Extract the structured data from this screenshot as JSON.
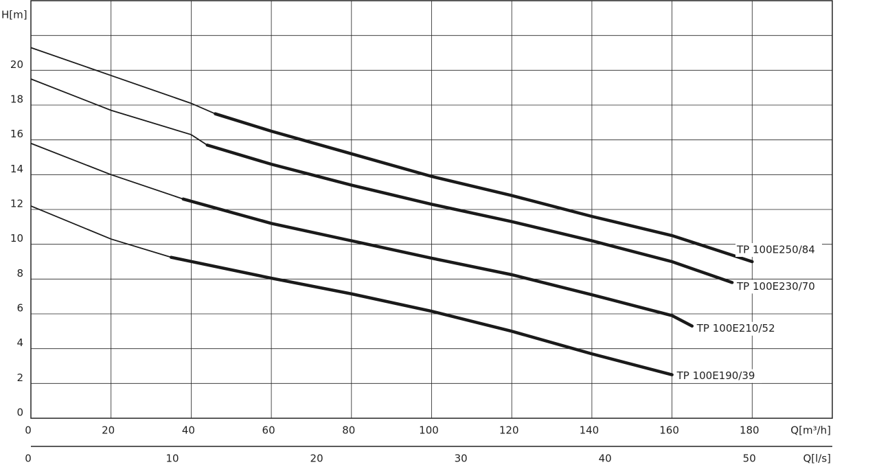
{
  "chart_data": {
    "type": "line",
    "ylabel": "H[m]",
    "xlabel": "Q[m³/h]",
    "x2label": "Q[l/s]",
    "xlim": [
      0,
      200
    ],
    "xticks": [
      0,
      20,
      40,
      60,
      80,
      100,
      120,
      140,
      160,
      180
    ],
    "xgrid": [
      0,
      20,
      40,
      60,
      80,
      100,
      120,
      140,
      160,
      180,
      200
    ],
    "x2lim": [
      0,
      55.56
    ],
    "x2ticks": [
      0,
      10,
      20,
      30,
      40,
      50
    ],
    "ylim": [
      0,
      24
    ],
    "yticks": [
      0,
      2,
      4,
      6,
      8,
      10,
      12,
      14,
      16,
      18,
      20
    ],
    "ygrid": [
      0,
      2,
      4,
      6,
      8,
      10,
      12,
      14,
      16,
      18,
      20,
      22
    ],
    "grid": true,
    "color": "#1a1a1a",
    "series": [
      {
        "name": "TP 100E250/84",
        "duty_start": 46,
        "x": [
          0,
          20,
          40,
          46,
          60,
          80,
          100,
          120,
          140,
          160,
          180
        ],
        "values": [
          21.3,
          19.7,
          18.1,
          17.5,
          16.5,
          15.2,
          13.9,
          12.8,
          11.6,
          10.5,
          9.0
        ]
      },
      {
        "name": "TP 100E230/70",
        "duty_start": 44,
        "x": [
          0,
          20,
          40,
          44,
          60,
          80,
          100,
          120,
          140,
          160,
          175
        ],
        "values": [
          19.5,
          17.7,
          16.3,
          15.7,
          14.6,
          13.4,
          12.3,
          11.3,
          10.2,
          9.0,
          7.8
        ]
      },
      {
        "name": "TP 100E210/52",
        "duty_start": 38,
        "x": [
          0,
          20,
          38,
          60,
          80,
          100,
          120,
          140,
          160,
          165
        ],
        "values": [
          15.8,
          14.0,
          12.6,
          11.2,
          10.2,
          9.2,
          8.25,
          7.1,
          5.9,
          5.3
        ]
      },
      {
        "name": "TP 100E190/39",
        "duty_start": 35,
        "x": [
          0,
          20,
          35,
          60,
          80,
          100,
          120,
          140,
          160
        ],
        "values": [
          12.2,
          10.3,
          9.25,
          8.05,
          7.15,
          6.15,
          5.0,
          3.7,
          2.5
        ]
      }
    ]
  }
}
